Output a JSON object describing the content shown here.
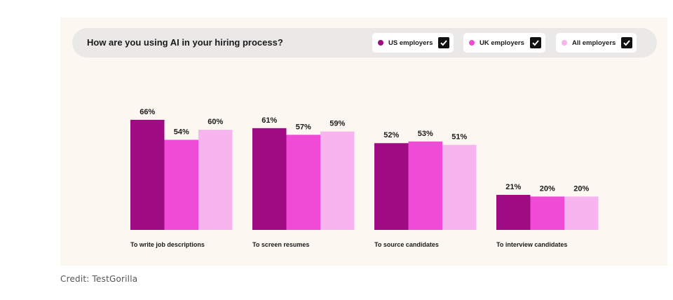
{
  "chart_data": {
    "type": "bar",
    "title": "How are you using AI in your hiring process?",
    "categories": [
      "To write job descriptions",
      "To screen resumes",
      "To source candidates",
      "To interview candidates"
    ],
    "series": [
      {
        "name": "US employers",
        "values": [
          66,
          61,
          52,
          21
        ],
        "labels": [
          "66%",
          "61%",
          "52%",
          "21%"
        ],
        "color": "#9e0b82"
      },
      {
        "name": "UK employers",
        "values": [
          54,
          57,
          53,
          20
        ],
        "labels": [
          "54%",
          "57%",
          "53%",
          "20%"
        ],
        "color": "#ef4bd6"
      },
      {
        "name": "All employers",
        "values": [
          60,
          59,
          51,
          20
        ],
        "labels": [
          "60%",
          "59%",
          "51%",
          "20%"
        ],
        "color": "#f8b4ee"
      }
    ],
    "ylim": [
      0,
      100
    ],
    "grid": false,
    "legend": "top-right"
  },
  "credit": "Credit: TestGorilla"
}
